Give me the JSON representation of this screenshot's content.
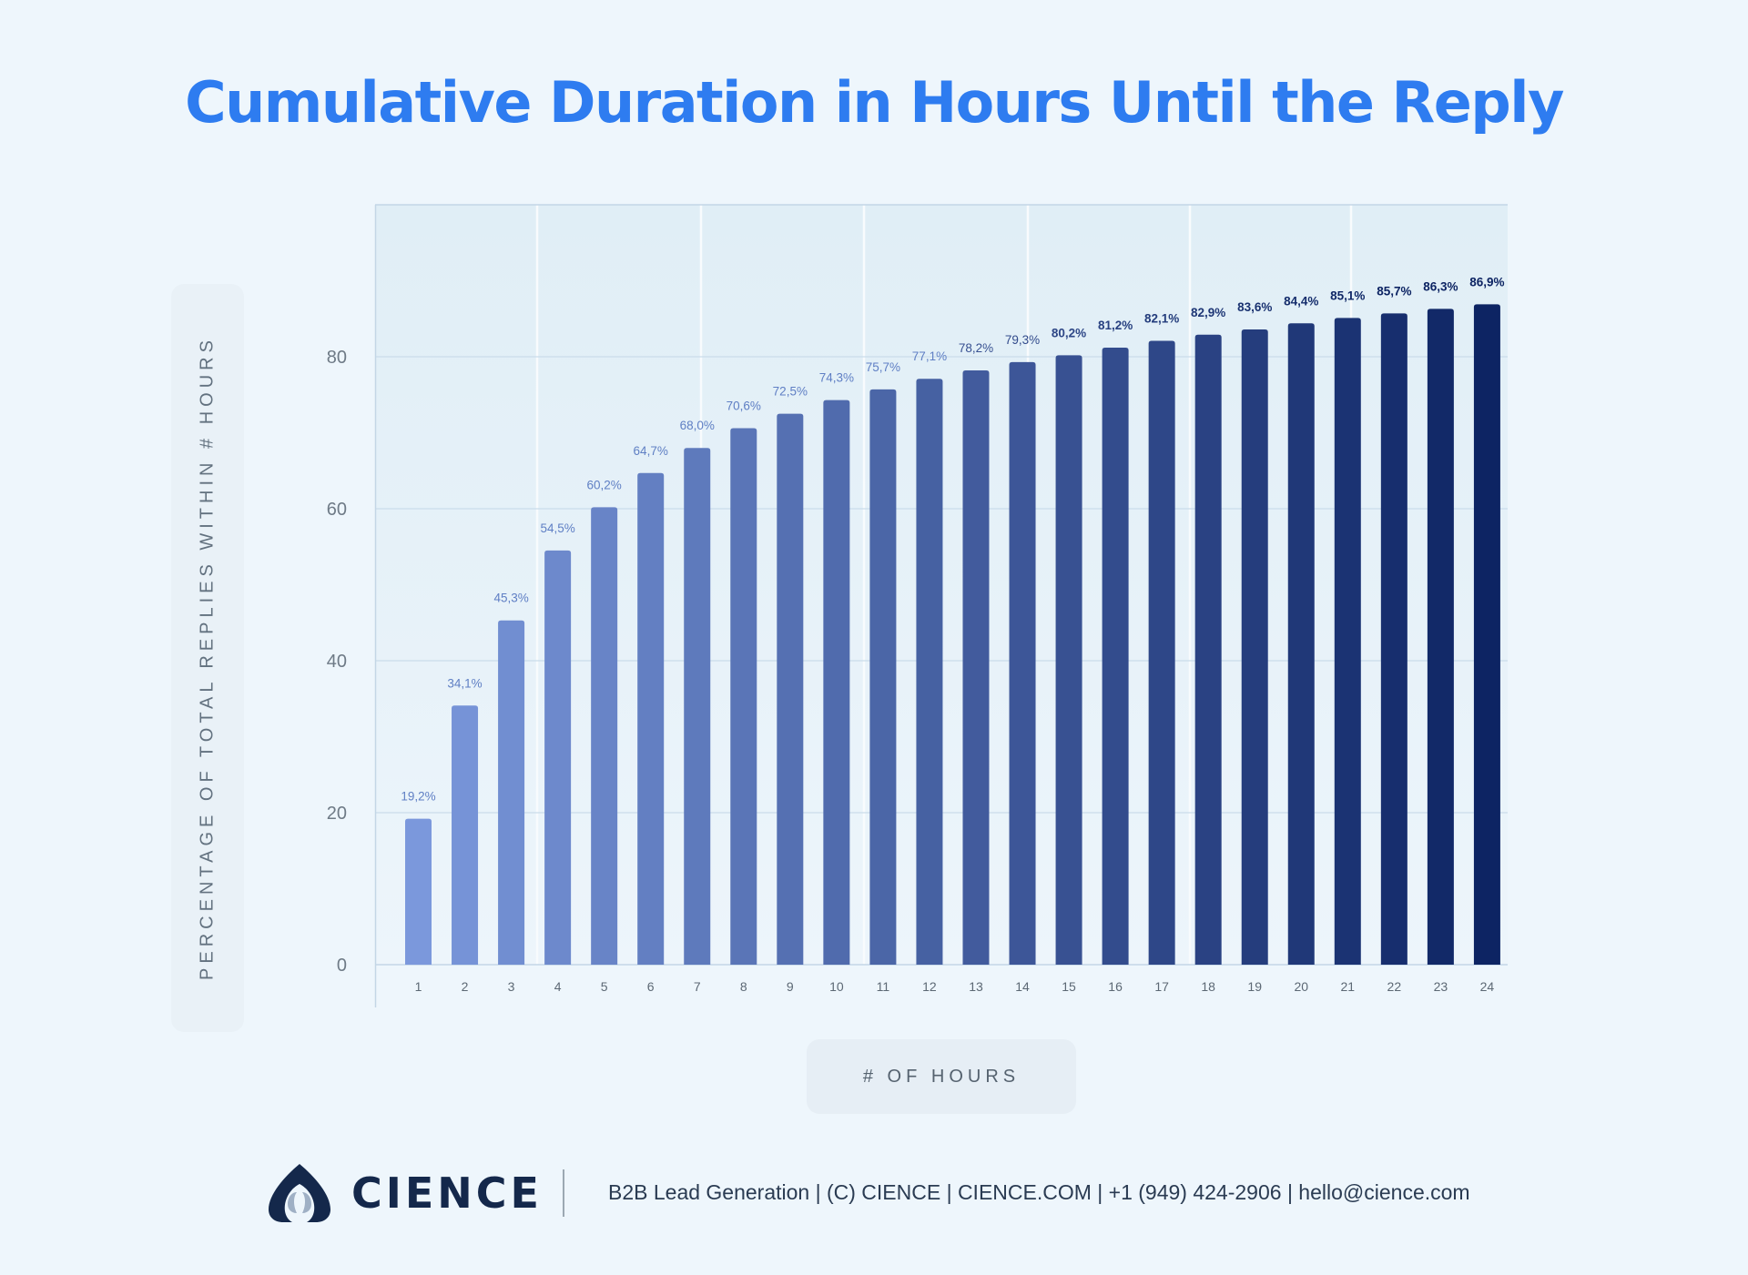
{
  "title": "Cumulative Duration in Hours Until the Reply",
  "chart_data": {
    "type": "bar",
    "title": "Cumulative Duration in Hours Until the Reply",
    "xlabel": "# OF HOURS",
    "ylabel": "PERCENTAGE OF TOTAL REPLIES WITHIN # HOURS",
    "categories": [
      "1",
      "2",
      "3",
      "4",
      "5",
      "6",
      "7",
      "8",
      "9",
      "10",
      "11",
      "12",
      "13",
      "14",
      "15",
      "16",
      "17",
      "18",
      "19",
      "20",
      "21",
      "22",
      "23",
      "24"
    ],
    "values": [
      19.2,
      34.1,
      45.3,
      54.5,
      60.2,
      64.7,
      68.0,
      70.6,
      72.5,
      74.3,
      75.7,
      77.1,
      78.2,
      79.3,
      80.2,
      81.2,
      82.1,
      82.9,
      83.6,
      84.4,
      85.1,
      85.7,
      86.3,
      86.9
    ],
    "data_labels": [
      "19,2%",
      "34,1%",
      "45,3%",
      "54,5%",
      "60,2%",
      "64,7%",
      "68,0%",
      "70,6%",
      "72,5%",
      "74,3%",
      "75,7%",
      "77,1%",
      "78,2%",
      "79,3%",
      "80,2%",
      "81,2%",
      "82,1%",
      "82,9%",
      "83,6%",
      "84,4%",
      "85,1%",
      "85,7%",
      "86,3%",
      "86,9%"
    ],
    "y_ticks": [
      0,
      20,
      40,
      60,
      80
    ],
    "ylim": [
      0,
      100
    ],
    "grid": true,
    "legend": "none",
    "colors": {
      "bar_start": "#7b98dc",
      "bar_end": "#0d2463",
      "title": "#2e7cf0",
      "plot_bg_top": "#e0eef6",
      "plot_bg_bottom": "#edf5fb"
    }
  },
  "footer": {
    "brand": "CIENCE",
    "logo_icon": "cience-logo-icon",
    "text": "B2B Lead Generation | (C) CIENCE | CIENCE.COM | +1 (949) 424-2906 | hello@cience.com"
  }
}
